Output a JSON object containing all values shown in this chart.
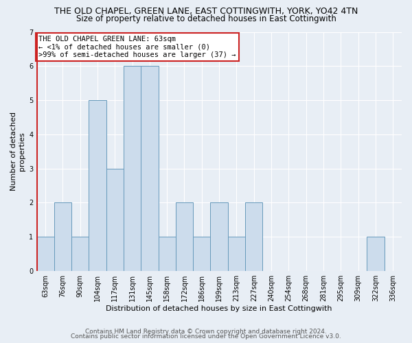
{
  "title": "THE OLD CHAPEL, GREEN LANE, EAST COTTINGWITH, YORK, YO42 4TN",
  "subtitle": "Size of property relative to detached houses in East Cottingwith",
  "xlabel": "Distribution of detached houses by size in East Cottingwith",
  "ylabel": "Number of detached\nproperties",
  "categories": [
    "63sqm",
    "76sqm",
    "90sqm",
    "104sqm",
    "117sqm",
    "131sqm",
    "145sqm",
    "158sqm",
    "172sqm",
    "186sqm",
    "199sqm",
    "213sqm",
    "227sqm",
    "240sqm",
    "254sqm",
    "268sqm",
    "281sqm",
    "295sqm",
    "309sqm",
    "322sqm",
    "336sqm"
  ],
  "values": [
    1,
    2,
    1,
    5,
    3,
    6,
    6,
    1,
    2,
    1,
    2,
    1,
    2,
    0,
    0,
    0,
    0,
    0,
    0,
    1,
    0
  ],
  "bar_color": "#ccdcec",
  "bar_edgecolor": "#6699bb",
  "highlight_color": "#cc2222",
  "annotation_text": "THE OLD CHAPEL GREEN LANE: 63sqm\n← <1% of detached houses are smaller (0)\n>99% of semi-detached houses are larger (37) →",
  "footer_line1": "Contains HM Land Registry data © Crown copyright and database right 2024.",
  "footer_line2": "Contains public sector information licensed under the Open Government Licence v3.0.",
  "ylim": [
    0,
    7
  ],
  "yticks": [
    0,
    1,
    2,
    3,
    4,
    5,
    6,
    7
  ],
  "background_color": "#e8eef5",
  "plot_background": "#e8eef5",
  "title_fontsize": 9,
  "subtitle_fontsize": 8.5,
  "ylabel_fontsize": 8,
  "xlabel_fontsize": 8,
  "tick_fontsize": 7,
  "annotation_fontsize": 7.5,
  "footer_fontsize": 6.5
}
